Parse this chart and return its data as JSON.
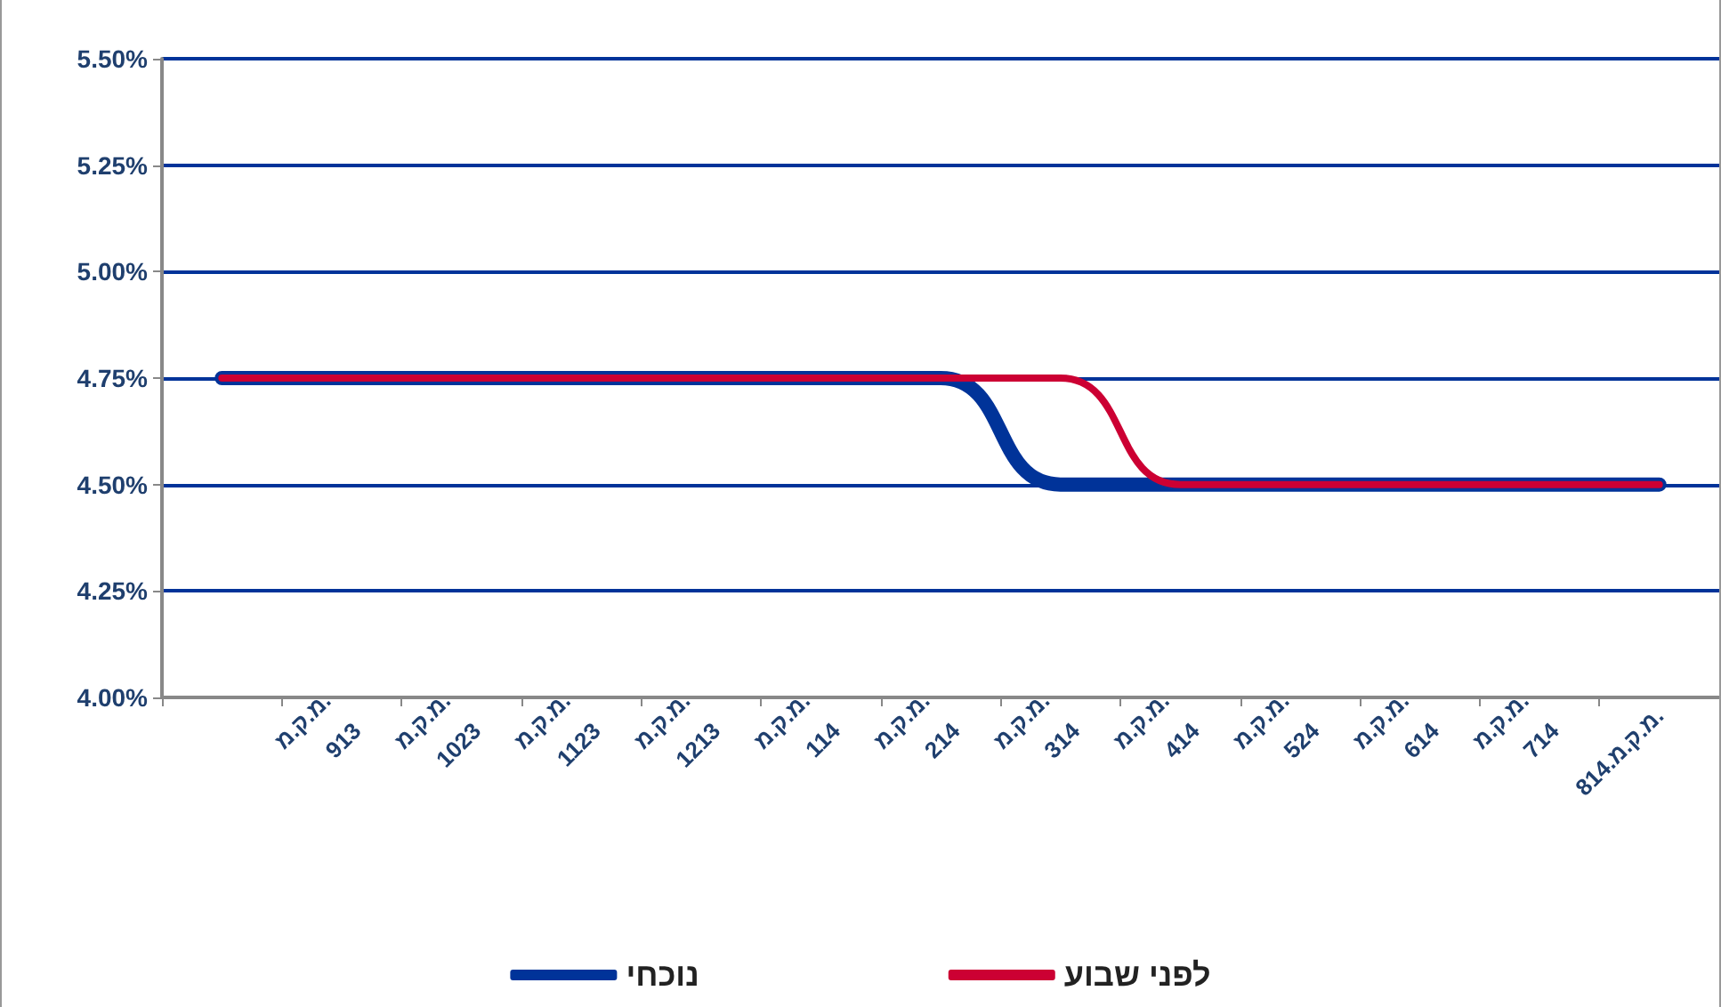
{
  "chart_data": {
    "type": "line",
    "categories": [
      null,
      "מ.ק.מ.\n913",
      "מ.ק.מ.\n1023",
      "מ.ק.מ.\n1123",
      "מ.ק.מ.\n1213",
      "מ.ק.מ.\n114",
      "מ.ק.מ.\n214",
      "מ.ק.מ.\n314",
      "מ.ק.מ.\n414",
      "מ.ק.מ.\n524",
      "מ.ק.מ.\n614",
      "מ.ק.מ.\n714",
      "814.מ.ק.מ."
    ],
    "series": [
      {
        "name": "נוכחי",
        "color": "#003399",
        "values": [
          4.75,
          4.75,
          4.75,
          4.75,
          4.75,
          4.75,
          4.75,
          4.5,
          4.5,
          4.5,
          4.5,
          4.5,
          4.5
        ]
      },
      {
        "name": "לפני שבוע",
        "color": "#cc0033",
        "values": [
          4.75,
          4.75,
          4.75,
          4.75,
          4.75,
          4.75,
          4.75,
          4.75,
          4.5,
          4.5,
          4.5,
          4.5,
          4.5
        ]
      }
    ],
    "ylim": [
      4.0,
      5.5
    ],
    "yticks": [
      {
        "value": 4.0,
        "label": "4.00%"
      },
      {
        "value": 4.25,
        "label": "4.25%"
      },
      {
        "value": 4.5,
        "label": "4.50%"
      },
      {
        "value": 4.75,
        "label": "4.75%"
      },
      {
        "value": 5.0,
        "label": "5.00%"
      },
      {
        "value": 5.25,
        "label": "5.25%"
      },
      {
        "value": 5.5,
        "label": "5.50%"
      }
    ],
    "grid": "y",
    "legend": "bottom",
    "marker": "none",
    "line_style": "solid"
  }
}
